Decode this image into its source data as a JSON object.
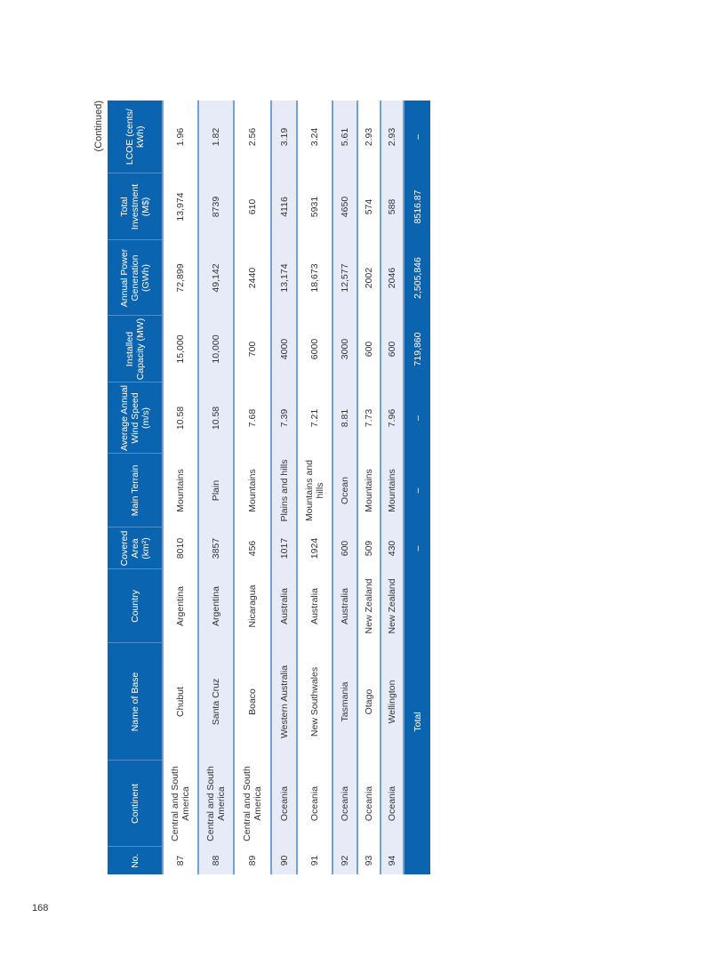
{
  "page_number": "168",
  "continued_label": "(Continued)",
  "columns": [
    "No.",
    "Continent",
    "Name of Base",
    "Country",
    "Covered Area (km²)",
    "Main Terrain",
    "Average Annual Wind Speed (m/s)",
    "Installed Capacity (MW)",
    "Annual Power Generation (GWh)",
    "Total Investment (M$)",
    "LCOE (cents/ kWh)"
  ],
  "rows": [
    [
      "87",
      "Central and South America",
      "Chubut",
      "Argentina",
      "8010",
      "Mountains",
      "10.58",
      "15,000",
      "72,899",
      "13,974",
      "1.96"
    ],
    [
      "88",
      "Central and South America",
      "Santa Cruz",
      "Argentina",
      "3857",
      "Plain",
      "10.58",
      "10,000",
      "49,142",
      "8739",
      "1.82"
    ],
    [
      "89",
      "Central and South America",
      "Boaco",
      "Nicaragua",
      "456",
      "Mountains",
      "7.68",
      "700",
      "2440",
      "610",
      "2.56"
    ],
    [
      "90",
      "Oceania",
      "Western Australia",
      "Australia",
      "1017",
      "Plains and hills",
      "7.39",
      "4000",
      "13,174",
      "4116",
      "3.19"
    ],
    [
      "91",
      "Oceania",
      "New Southwales",
      "Australia",
      "1924",
      "Mountains and hills",
      "7.21",
      "6000",
      "18,673",
      "5931",
      "3.24"
    ],
    [
      "92",
      "Oceania",
      "Tasmania",
      "Australia",
      "600",
      "Ocean",
      "8.81",
      "3000",
      "12,577",
      "4650",
      "5.61"
    ],
    [
      "93",
      "Oceania",
      "Otago",
      "New Zealand",
      "509",
      "Mountains",
      "7.73",
      "600",
      "2002",
      "574",
      "2.93"
    ],
    [
      "94",
      "Oceania",
      "Wellington",
      "New Zealand",
      "430",
      "Mountains",
      "7.96",
      "600",
      "2046",
      "588",
      "2.93"
    ]
  ],
  "total": [
    "Total",
    "–",
    "–",
    "–",
    "719,860",
    "2,505,846",
    "8516.87",
    "–"
  ]
}
